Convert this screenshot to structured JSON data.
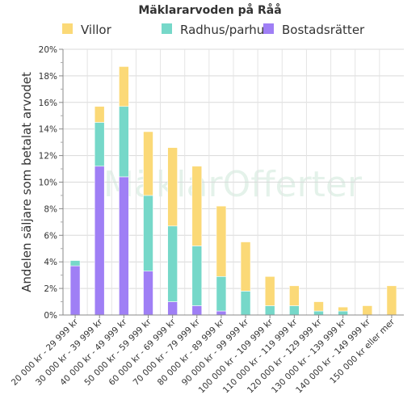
{
  "watermark": {
    "text": "MäklarOfferter"
  },
  "chart_data": {
    "type": "bar",
    "stacked": true,
    "title": "Mäklararvoden på Råå",
    "ylabel": "Andelen säljare som betalat arvodet",
    "xlabel": "",
    "ylim": [
      0,
      20
    ],
    "yticks": [
      "0%",
      "2%",
      "4%",
      "6%",
      "8%",
      "10%",
      "12%",
      "14%",
      "16%",
      "18%",
      "20%"
    ],
    "grid": true,
    "legend_position": "top",
    "categories": [
      "20 000 kr - 29 999 kr",
      "30 000 kr - 39 999 kr",
      "40 000 kr - 49 999 kr",
      "50 000 kr - 59 999 kr",
      "60 000 kr - 69 999 kr",
      "70 000 kr - 79 999 kr",
      "80 000 kr - 89 999 kr",
      "90 000 kr - 99 999 kr",
      "100 000 kr - 109 999 kr",
      "110 000 kr - 119 999 kr",
      "120 000 kr - 129 999 kr",
      "130 000 kr - 139 999 kr",
      "140 000 kr - 149 999 kr",
      "150 000 kr eller mer"
    ],
    "series": [
      {
        "name": "Bostadsrätter",
        "color": "#9f7ff5",
        "values": [
          3.7,
          11.2,
          10.4,
          3.3,
          1.0,
          0.7,
          0.3,
          0,
          0,
          0,
          0,
          0,
          0,
          0
        ]
      },
      {
        "name": "Radhus/parhus",
        "color": "#76d8c9",
        "values": [
          0.4,
          3.3,
          5.3,
          5.7,
          5.7,
          4.5,
          2.6,
          1.8,
          0.7,
          0.7,
          0.3,
          0.3,
          0,
          0
        ]
      },
      {
        "name": "Villor",
        "color": "#fbd977",
        "values": [
          0,
          1.2,
          3.0,
          4.8,
          5.9,
          6.0,
          5.3,
          3.7,
          2.2,
          1.5,
          0.7,
          0.3,
          0.7,
          2.2
        ]
      }
    ],
    "legend_order": [
      "Villor",
      "Radhus/parhus",
      "Bostadsrätter"
    ]
  }
}
